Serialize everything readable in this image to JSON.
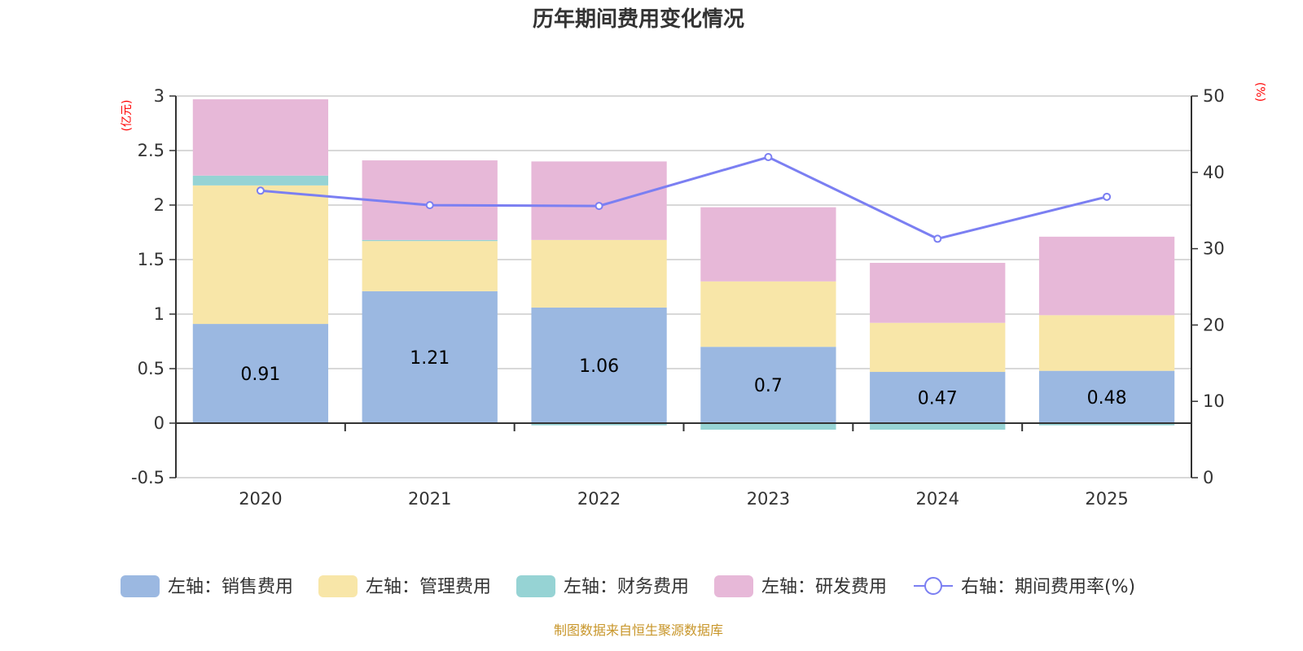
{
  "chart_data": {
    "type": "bar",
    "stacked": true,
    "title": "历年期间费用变化情况",
    "categories": [
      "2020",
      "2021",
      "2022",
      "2023",
      "2024",
      "2025"
    ],
    "left_axis": {
      "unit_label": "(亿元)",
      "ylim": [
        -0.5,
        3
      ],
      "ticks": [
        -0.5,
        0,
        0.5,
        1,
        1.5,
        2,
        2.5,
        3
      ],
      "tick_labels": [
        "-0.5",
        "0",
        "0.5",
        "1",
        "1.5",
        "2",
        "2.5",
        "3"
      ]
    },
    "right_axis": {
      "unit_label": "(%)",
      "ylim": [
        0,
        50
      ],
      "ticks": [
        0,
        10,
        20,
        30,
        40,
        50
      ],
      "tick_labels": [
        "0",
        "10",
        "20",
        "30",
        "40",
        "50"
      ]
    },
    "grid": true,
    "series": [
      {
        "name": "左轴：销售费用",
        "axis": "left",
        "type": "bar",
        "color": "#9bb8e1",
        "values": [
          0.91,
          1.21,
          1.06,
          0.7,
          0.47,
          0.48
        ],
        "data_labels": [
          "0.91",
          "1.21",
          "1.06",
          "0.7",
          "0.47",
          "0.48"
        ]
      },
      {
        "name": "左轴：管理费用",
        "axis": "left",
        "type": "bar",
        "color": "#f8e6a8",
        "values": [
          1.27,
          0.46,
          0.62,
          0.6,
          0.45,
          0.51
        ]
      },
      {
        "name": "左轴：财务费用",
        "axis": "left",
        "type": "bar",
        "color": "#96d3d4",
        "values": [
          0.09,
          0.01,
          -0.02,
          -0.06,
          -0.06,
          -0.02
        ]
      },
      {
        "name": "左轴：研发费用",
        "axis": "left",
        "type": "bar",
        "color": "#e7b8d8",
        "values": [
          0.7,
          0.73,
          0.72,
          0.68,
          0.55,
          0.72
        ]
      },
      {
        "name": "右轴：期间费用率(%)",
        "axis": "right",
        "type": "line",
        "color": "#7b7ff2",
        "values": [
          37.6,
          35.7,
          35.6,
          42.0,
          31.3,
          36.8
        ]
      }
    ],
    "legend_position": "bottom",
    "source_note": "制图数据来自恒生聚源数据库"
  }
}
